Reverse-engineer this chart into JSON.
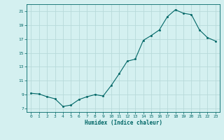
{
  "x": [
    0,
    1,
    2,
    3,
    4,
    5,
    6,
    7,
    8,
    9,
    10,
    11,
    12,
    13,
    14,
    15,
    16,
    17,
    18,
    19,
    20,
    21,
    22,
    23
  ],
  "y": [
    9.2,
    9.1,
    8.7,
    8.4,
    7.3,
    7.5,
    8.3,
    8.7,
    9.0,
    8.8,
    10.3,
    12.0,
    13.8,
    14.1,
    16.8,
    17.5,
    18.3,
    20.2,
    21.2,
    20.7,
    20.5,
    18.3,
    17.2,
    16.7
  ],
  "line_color": "#006666",
  "marker_color": "#006666",
  "bg_color": "#d4f0f0",
  "grid_color": "#b8dada",
  "axis_color": "#006666",
  "xlabel": "Humidex (Indice chaleur)",
  "ylim": [
    6.5,
    22
  ],
  "xlim": [
    -0.5,
    23.5
  ],
  "yticks": [
    7,
    9,
    11,
    13,
    15,
    17,
    19,
    21
  ],
  "xticks": [
    0,
    1,
    2,
    3,
    4,
    5,
    6,
    7,
    8,
    9,
    10,
    11,
    12,
    13,
    14,
    15,
    16,
    17,
    18,
    19,
    20,
    21,
    22,
    23
  ]
}
